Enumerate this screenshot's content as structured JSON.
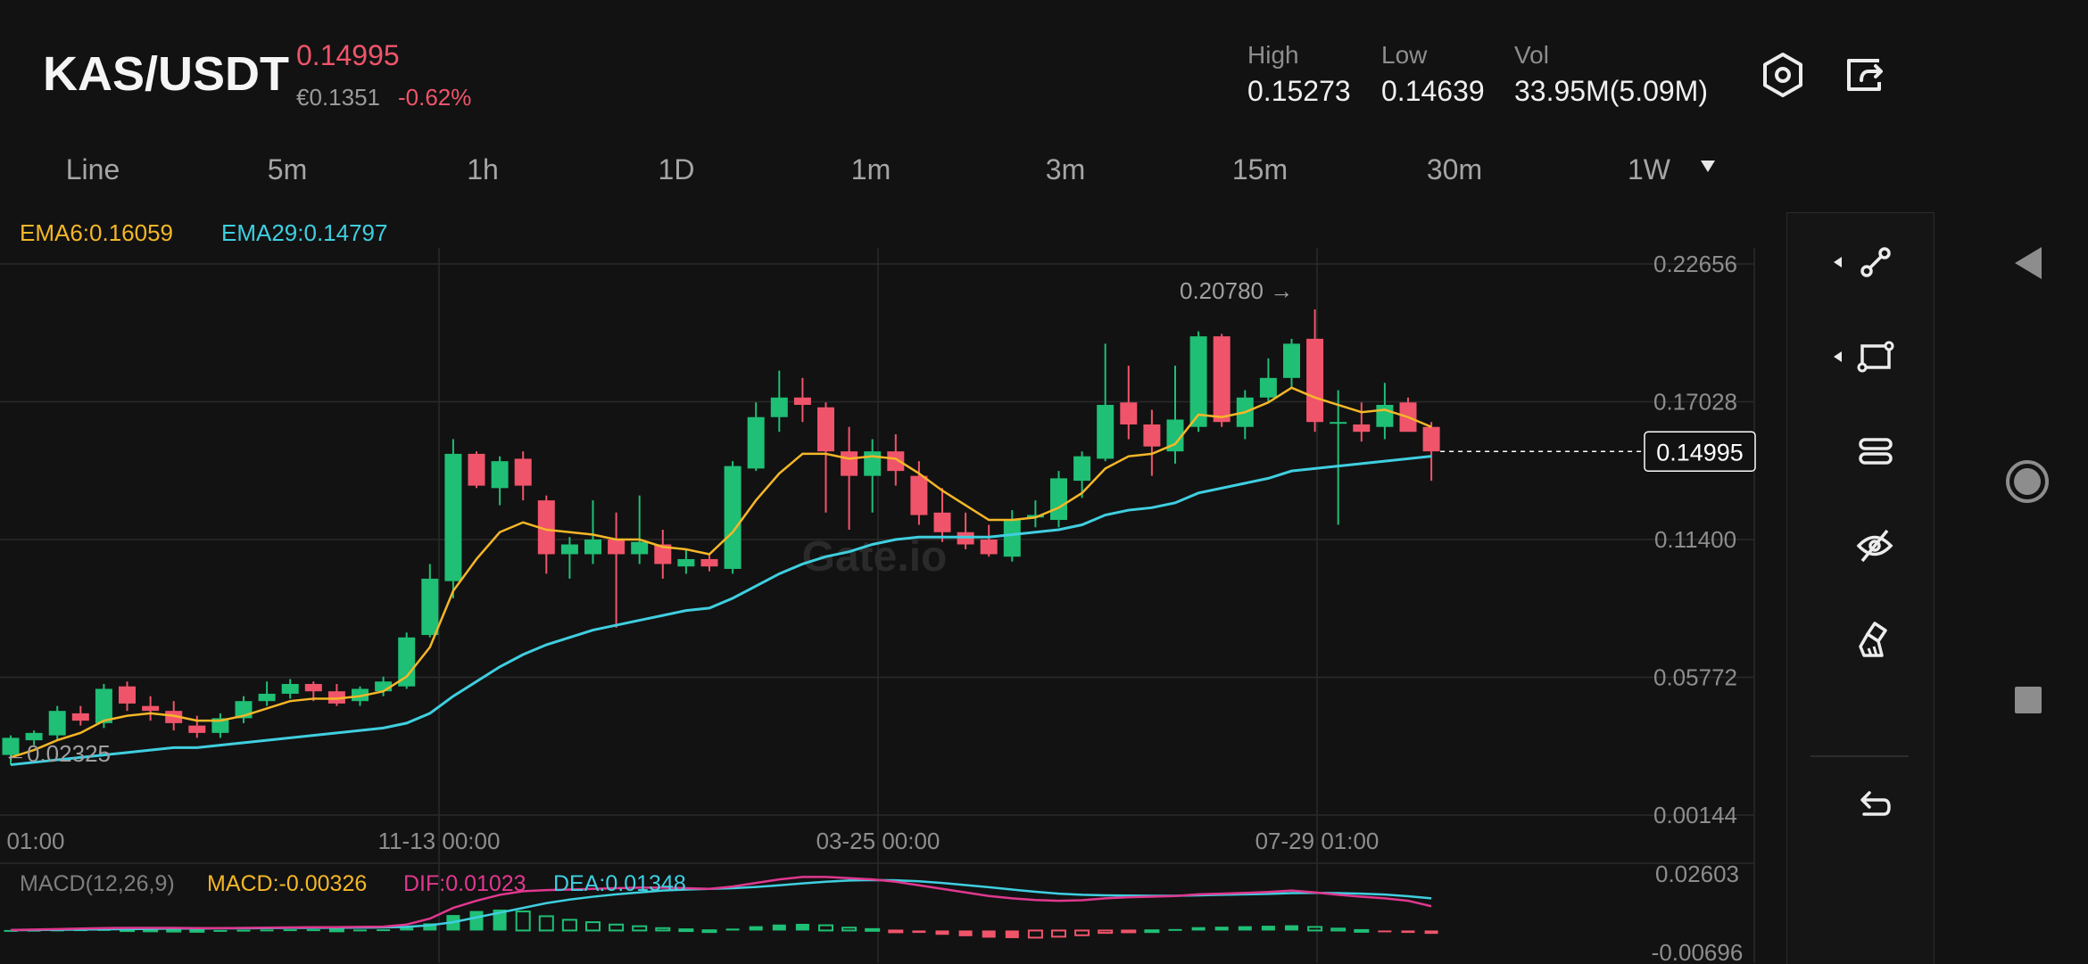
{
  "header": {
    "pair": "KAS/USDT",
    "price": "0.14995",
    "fiat_price": "€0.1351",
    "change": "-0.62%",
    "stats": [
      {
        "label": "High",
        "value": "0.15273"
      },
      {
        "label": "Low",
        "value": "0.14639"
      },
      {
        "label": "Vol",
        "value": "33.95M(5.09M)"
      }
    ]
  },
  "tabs": [
    "Line",
    "5m",
    "1h",
    "1D",
    "1m",
    "3m",
    "15m",
    "30m",
    "1W"
  ],
  "indicators": {
    "ema6": "EMA6:0.16059",
    "ema29": "EMA29:0.14797",
    "macd_title": "MACD(12,26,9)",
    "macd": "MACD:-0.00326",
    "dif": "DIF:0.01023",
    "dea": "DEA:0.01348"
  },
  "colors": {
    "up": "#1fbf75",
    "down": "#f0546a",
    "ema6": "#f5b728",
    "ema29": "#3fcfe0",
    "dif": "#e0388f"
  },
  "watermark": "Gate.io",
  "icons": {
    "settings": "hexagon-settings-icon",
    "share": "share-icon",
    "tools": [
      "trend-line-icon",
      "rectangle-icon",
      "parallel-channel-icon",
      "hide-eye-icon",
      "eraser-icon",
      "undo-icon"
    ],
    "nav": [
      "back-triangle-icon",
      "home-circle-icon",
      "recents-square-icon"
    ]
  },
  "chart_data": [
    {
      "type": "candlestick",
      "title": "",
      "y_ticks": [
        "0.22656",
        "0.17028",
        "0.11400",
        "0.05772",
        "0.00144"
      ],
      "ylim": [
        0.00144,
        0.22656
      ],
      "x_ticks": [
        "01:00",
        "11-13 00:00",
        "03-25 00:00",
        "07-29 01:00"
      ],
      "max_label": "0.20780",
      "min_label": "0.02325",
      "last_price": "0.14995",
      "grid": true,
      "candles": [
        {
          "o": 0.026,
          "h": 0.034,
          "l": 0.022,
          "c": 0.033
        },
        {
          "o": 0.032,
          "h": 0.036,
          "l": 0.03,
          "c": 0.035
        },
        {
          "o": 0.034,
          "h": 0.046,
          "l": 0.032,
          "c": 0.044
        },
        {
          "o": 0.043,
          "h": 0.046,
          "l": 0.038,
          "c": 0.04
        },
        {
          "o": 0.039,
          "h": 0.055,
          "l": 0.037,
          "c": 0.053
        },
        {
          "o": 0.054,
          "h": 0.056,
          "l": 0.044,
          "c": 0.047
        },
        {
          "o": 0.046,
          "h": 0.05,
          "l": 0.04,
          "c": 0.044
        },
        {
          "o": 0.044,
          "h": 0.048,
          "l": 0.036,
          "c": 0.039
        },
        {
          "o": 0.038,
          "h": 0.042,
          "l": 0.033,
          "c": 0.035
        },
        {
          "o": 0.035,
          "h": 0.043,
          "l": 0.033,
          "c": 0.041
        },
        {
          "o": 0.041,
          "h": 0.05,
          "l": 0.039,
          "c": 0.048
        },
        {
          "o": 0.048,
          "h": 0.056,
          "l": 0.046,
          "c": 0.051
        },
        {
          "o": 0.051,
          "h": 0.057,
          "l": 0.049,
          "c": 0.055
        },
        {
          "o": 0.055,
          "h": 0.056,
          "l": 0.048,
          "c": 0.052
        },
        {
          "o": 0.052,
          "h": 0.055,
          "l": 0.046,
          "c": 0.047
        },
        {
          "o": 0.048,
          "h": 0.054,
          "l": 0.046,
          "c": 0.053
        },
        {
          "o": 0.052,
          "h": 0.058,
          "l": 0.05,
          "c": 0.056
        },
        {
          "o": 0.054,
          "h": 0.076,
          "l": 0.053,
          "c": 0.074
        },
        {
          "o": 0.075,
          "h": 0.104,
          "l": 0.074,
          "c": 0.098
        },
        {
          "o": 0.097,
          "h": 0.155,
          "l": 0.09,
          "c": 0.149
        },
        {
          "o": 0.149,
          "h": 0.15,
          "l": 0.135,
          "c": 0.136
        },
        {
          "o": 0.135,
          "h": 0.148,
          "l": 0.128,
          "c": 0.146
        },
        {
          "o": 0.147,
          "h": 0.15,
          "l": 0.13,
          "c": 0.136
        },
        {
          "o": 0.13,
          "h": 0.132,
          "l": 0.1,
          "c": 0.108
        },
        {
          "o": 0.108,
          "h": 0.115,
          "l": 0.098,
          "c": 0.112
        },
        {
          "o": 0.108,
          "h": 0.13,
          "l": 0.104,
          "c": 0.114
        },
        {
          "o": 0.114,
          "h": 0.125,
          "l": 0.078,
          "c": 0.108
        },
        {
          "o": 0.108,
          "h": 0.132,
          "l": 0.104,
          "c": 0.113
        },
        {
          "o": 0.112,
          "h": 0.118,
          "l": 0.098,
          "c": 0.104
        },
        {
          "o": 0.103,
          "h": 0.11,
          "l": 0.1,
          "c": 0.106
        },
        {
          "o": 0.106,
          "h": 0.108,
          "l": 0.101,
          "c": 0.103
        },
        {
          "o": 0.102,
          "h": 0.146,
          "l": 0.1,
          "c": 0.144
        },
        {
          "o": 0.143,
          "h": 0.17,
          "l": 0.142,
          "c": 0.164
        },
        {
          "o": 0.164,
          "h": 0.183,
          "l": 0.158,
          "c": 0.172
        },
        {
          "o": 0.172,
          "h": 0.18,
          "l": 0.162,
          "c": 0.169
        },
        {
          "o": 0.168,
          "h": 0.17,
          "l": 0.125,
          "c": 0.15
        },
        {
          "o": 0.15,
          "h": 0.16,
          "l": 0.118,
          "c": 0.14
        },
        {
          "o": 0.14,
          "h": 0.155,
          "l": 0.125,
          "c": 0.15
        },
        {
          "o": 0.15,
          "h": 0.157,
          "l": 0.136,
          "c": 0.142
        },
        {
          "o": 0.14,
          "h": 0.146,
          "l": 0.12,
          "c": 0.124
        },
        {
          "o": 0.125,
          "h": 0.135,
          "l": 0.113,
          "c": 0.117
        },
        {
          "o": 0.117,
          "h": 0.125,
          "l": 0.11,
          "c": 0.112
        },
        {
          "o": 0.114,
          "h": 0.12,
          "l": 0.107,
          "c": 0.108
        },
        {
          "o": 0.107,
          "h": 0.126,
          "l": 0.105,
          "c": 0.122
        },
        {
          "o": 0.123,
          "h": 0.13,
          "l": 0.119,
          "c": 0.124
        },
        {
          "o": 0.122,
          "h": 0.142,
          "l": 0.119,
          "c": 0.139
        },
        {
          "o": 0.138,
          "h": 0.15,
          "l": 0.131,
          "c": 0.148
        },
        {
          "o": 0.147,
          "h": 0.194,
          "l": 0.146,
          "c": 0.169
        },
        {
          "o": 0.17,
          "h": 0.185,
          "l": 0.155,
          "c": 0.161
        },
        {
          "o": 0.161,
          "h": 0.167,
          "l": 0.14,
          "c": 0.152
        },
        {
          "o": 0.15,
          "h": 0.185,
          "l": 0.145,
          "c": 0.163
        },
        {
          "o": 0.16,
          "h": 0.199,
          "l": 0.158,
          "c": 0.197
        },
        {
          "o": 0.197,
          "h": 0.198,
          "l": 0.16,
          "c": 0.162
        },
        {
          "o": 0.16,
          "h": 0.175,
          "l": 0.155,
          "c": 0.172
        },
        {
          "o": 0.172,
          "h": 0.188,
          "l": 0.17,
          "c": 0.18
        },
        {
          "o": 0.18,
          "h": 0.196,
          "l": 0.176,
          "c": 0.194
        },
        {
          "o": 0.196,
          "h": 0.208,
          "l": 0.158,
          "c": 0.162
        },
        {
          "o": 0.162,
          "h": 0.175,
          "l": 0.12,
          "c": 0.162
        },
        {
          "o": 0.161,
          "h": 0.17,
          "l": 0.154,
          "c": 0.158
        },
        {
          "o": 0.16,
          "h": 0.178,
          "l": 0.155,
          "c": 0.169
        },
        {
          "o": 0.17,
          "h": 0.172,
          "l": 0.158,
          "c": 0.158
        },
        {
          "o": 0.16,
          "h": 0.162,
          "l": 0.138,
          "c": 0.15
        }
      ],
      "ema6": [
        0.025,
        0.028,
        0.032,
        0.035,
        0.04,
        0.042,
        0.043,
        0.042,
        0.04,
        0.04,
        0.042,
        0.045,
        0.048,
        0.049,
        0.049,
        0.05,
        0.052,
        0.058,
        0.07,
        0.093,
        0.106,
        0.117,
        0.121,
        0.118,
        0.117,
        0.116,
        0.114,
        0.114,
        0.111,
        0.11,
        0.108,
        0.117,
        0.13,
        0.141,
        0.149,
        0.149,
        0.147,
        0.148,
        0.147,
        0.141,
        0.134,
        0.128,
        0.122,
        0.122,
        0.123,
        0.127,
        0.133,
        0.143,
        0.148,
        0.149,
        0.153,
        0.165,
        0.164,
        0.166,
        0.17,
        0.176,
        0.172,
        0.169,
        0.166,
        0.167,
        0.164,
        0.16
      ],
      "ema29": [
        0.022,
        0.023,
        0.024,
        0.025,
        0.026,
        0.027,
        0.028,
        0.029,
        0.029,
        0.03,
        0.031,
        0.032,
        0.033,
        0.034,
        0.035,
        0.036,
        0.037,
        0.039,
        0.043,
        0.05,
        0.056,
        0.062,
        0.067,
        0.071,
        0.074,
        0.077,
        0.079,
        0.081,
        0.083,
        0.085,
        0.086,
        0.09,
        0.095,
        0.1,
        0.104,
        0.107,
        0.109,
        0.112,
        0.114,
        0.115,
        0.115,
        0.115,
        0.115,
        0.116,
        0.117,
        0.118,
        0.12,
        0.124,
        0.126,
        0.127,
        0.129,
        0.133,
        0.135,
        0.137,
        0.139,
        0.142,
        0.143,
        0.144,
        0.145,
        0.146,
        0.147,
        0.148
      ]
    },
    {
      "type": "bar",
      "title": "MACD(12,26,9)",
      "y_ticks": [
        "0.02603",
        "-0.00696"
      ],
      "ylim": [
        -0.00696,
        0.02603
      ],
      "histogram": [
        0.0002,
        0.0003,
        0.0004,
        0.0005,
        0.0006,
        0.0005,
        0.0004,
        0.0003,
        0.0002,
        0.0002,
        0.0003,
        0.0004,
        0.0005,
        0.0005,
        0.0004,
        0.0004,
        0.0005,
        0.0012,
        0.003,
        0.0065,
        0.0082,
        0.0088,
        0.008,
        0.006,
        0.0045,
        0.0035,
        0.0025,
        0.0018,
        0.001,
        0.0005,
        0.0001,
        0.0008,
        0.0018,
        0.0025,
        0.0028,
        0.0022,
        0.0012,
        0.0006,
        -0.0002,
        -0.001,
        -0.0018,
        -0.0024,
        -0.003,
        -0.0032,
        -0.003,
        -0.0026,
        -0.002,
        -0.001,
        -0.0004,
        0.0001,
        0.0006,
        0.0014,
        0.0016,
        0.0018,
        0.002,
        0.0022,
        0.0015,
        0.0008,
        0.0002,
        -0.0004,
        -0.001,
        -0.0014
      ],
      "dif": [
        0.0002,
        0.0004,
        0.0006,
        0.0008,
        0.001,
        0.0011,
        0.0011,
        0.0011,
        0.001,
        0.001,
        0.0011,
        0.0012,
        0.0013,
        0.0014,
        0.0014,
        0.0015,
        0.0016,
        0.0025,
        0.005,
        0.0095,
        0.0125,
        0.015,
        0.0165,
        0.017,
        0.0172,
        0.0175,
        0.0178,
        0.018,
        0.018,
        0.0178,
        0.0175,
        0.0185,
        0.02,
        0.0215,
        0.0225,
        0.0225,
        0.022,
        0.0215,
        0.0205,
        0.019,
        0.0175,
        0.016,
        0.0145,
        0.0135,
        0.0128,
        0.0125,
        0.0127,
        0.0135,
        0.014,
        0.0142,
        0.0145,
        0.0152,
        0.0155,
        0.0158,
        0.0162,
        0.0168,
        0.016,
        0.015,
        0.0142,
        0.0135,
        0.0125,
        0.0102
      ],
      "dea": [
        0.0001,
        0.0002,
        0.0003,
        0.0004,
        0.0005,
        0.0006,
        0.0007,
        0.0008,
        0.0008,
        0.0009,
        0.0009,
        0.001,
        0.0011,
        0.0011,
        0.0012,
        0.0012,
        0.0013,
        0.0015,
        0.0022,
        0.0035,
        0.0055,
        0.0075,
        0.0095,
        0.0115,
        0.013,
        0.0142,
        0.0152,
        0.016,
        0.0168,
        0.0172,
        0.0175,
        0.0178,
        0.0183,
        0.019,
        0.0198,
        0.0205,
        0.021,
        0.0212,
        0.0211,
        0.0207,
        0.02,
        0.0191,
        0.0182,
        0.0172,
        0.0163,
        0.0155,
        0.015,
        0.0148,
        0.0147,
        0.0146,
        0.0146,
        0.0148,
        0.015,
        0.0152,
        0.0154,
        0.0157,
        0.0158,
        0.0157,
        0.0155,
        0.0151,
        0.0144,
        0.0135
      ]
    }
  ]
}
